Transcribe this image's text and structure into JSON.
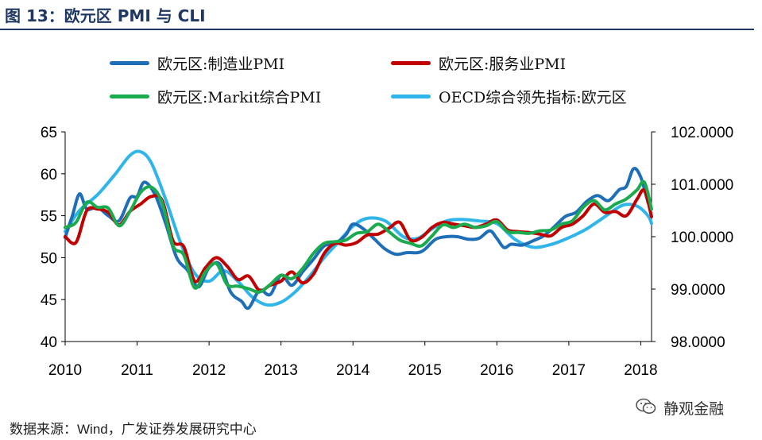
{
  "header": {
    "title": "图 13：欧元区 PMI 与 CLI"
  },
  "footer": {
    "source_prefix": "数据来源：",
    "source_value": "Wind，广发证券发展研究中心",
    "watermark": "静观金融"
  },
  "colors": {
    "manufacturing": "#1f6fb8",
    "services": "#c00000",
    "composite": "#1aab4e",
    "cli": "#2fb5ea",
    "axis": "#000000"
  },
  "chart_data": {
    "type": "line",
    "x_ticks": [
      "2010",
      "2011",
      "2012",
      "2013",
      "2014",
      "2015",
      "2016",
      "2017",
      "2018"
    ],
    "y_left": {
      "min": 40,
      "max": 65,
      "ticks": [
        "40",
        "45",
        "50",
        "55",
        "60",
        "65"
      ]
    },
    "y_right": {
      "min": 98.0,
      "max": 102.0,
      "ticks": [
        "98.0000",
        "99.0000",
        "100.0000",
        "101.0000",
        "102.0000"
      ]
    },
    "series": [
      {
        "name": "欧元区:制造业PMI",
        "axis": "left",
        "color_key": "manufacturing",
        "x": [
          2010.0,
          2010.1,
          2010.2,
          2010.3,
          2010.45,
          2010.6,
          2010.75,
          2010.9,
          2011.0,
          2011.1,
          2011.25,
          2011.4,
          2011.55,
          2011.7,
          2011.85,
          2012.0,
          2012.15,
          2012.3,
          2012.45,
          2012.55,
          2012.7,
          2012.85,
          2013.0,
          2013.15,
          2013.3,
          2013.45,
          2013.6,
          2013.75,
          2013.9,
          2014.0,
          2014.15,
          2014.3,
          2014.45,
          2014.6,
          2014.75,
          2014.9,
          2015.0,
          2015.15,
          2015.3,
          2015.45,
          2015.6,
          2015.75,
          2015.9,
          2016.0,
          2016.1,
          2016.2,
          2016.35,
          2016.5,
          2016.65,
          2016.8,
          2016.95,
          2017.1,
          2017.25,
          2017.4,
          2017.55,
          2017.7,
          2017.8,
          2017.9,
          2018.0,
          2018.1
        ],
        "values": [
          52.4,
          55.0,
          57.6,
          55.8,
          56.0,
          55.0,
          54.4,
          57.1,
          57.3,
          59.0,
          57.5,
          54.0,
          50.0,
          48.5,
          46.5,
          48.8,
          49.2,
          45.9,
          44.8,
          44.0,
          46.1,
          45.6,
          47.9,
          46.7,
          48.3,
          49.8,
          51.4,
          51.7,
          52.7,
          54.0,
          53.4,
          52.2,
          51.0,
          50.4,
          50.6,
          50.6,
          51.0,
          52.2,
          52.5,
          52.5,
          52.2,
          52.3,
          53.2,
          52.3,
          51.2,
          51.6,
          51.5,
          52.0,
          52.6,
          53.7,
          54.9,
          55.4,
          56.7,
          57.4,
          56.8,
          58.1,
          58.5,
          60.6,
          59.6,
          56.6
        ]
      },
      {
        "name": "欧元区:服务业PMI",
        "axis": "left",
        "color_key": "services",
        "x": [
          2010.0,
          2010.15,
          2010.3,
          2010.45,
          2010.6,
          2010.75,
          2010.9,
          2011.05,
          2011.2,
          2011.35,
          2011.5,
          2011.65,
          2011.8,
          2011.95,
          2012.1,
          2012.25,
          2012.4,
          2012.55,
          2012.7,
          2012.85,
          2013.0,
          2013.15,
          2013.3,
          2013.45,
          2013.6,
          2013.75,
          2013.9,
          2014.05,
          2014.2,
          2014.35,
          2014.5,
          2014.65,
          2014.8,
          2014.95,
          2015.1,
          2015.25,
          2015.4,
          2015.55,
          2015.7,
          2015.85,
          2016.0,
          2016.15,
          2016.3,
          2016.45,
          2016.6,
          2016.75,
          2016.9,
          2017.05,
          2017.2,
          2017.35,
          2017.5,
          2017.65,
          2017.8,
          2017.95,
          2018.05,
          2018.15
        ],
        "values": [
          52.5,
          51.8,
          55.6,
          55.8,
          55.4,
          53.9,
          55.5,
          56.4,
          57.3,
          56.8,
          52.0,
          51.3,
          47.2,
          48.8,
          50.0,
          49.0,
          47.4,
          47.8,
          46.1,
          46.7,
          47.2,
          48.3,
          47.0,
          48.0,
          50.5,
          51.7,
          51.5,
          51.8,
          52.7,
          52.8,
          53.5,
          54.2,
          52.1,
          52.4,
          53.6,
          54.2,
          54.0,
          53.8,
          53.6,
          54.0,
          54.5,
          53.3,
          53.1,
          53.0,
          52.8,
          52.6,
          53.6,
          54.0,
          55.0,
          56.4,
          55.4,
          55.5,
          55.0,
          57.0,
          58.0,
          54.9
        ]
      },
      {
        "name": "欧元区:Markit综合PMI",
        "axis": "left",
        "color_key": "composite",
        "x": [
          2010.0,
          2010.15,
          2010.3,
          2010.45,
          2010.6,
          2010.75,
          2010.9,
          2011.05,
          2011.2,
          2011.35,
          2011.5,
          2011.65,
          2011.8,
          2011.95,
          2012.1,
          2012.25,
          2012.4,
          2012.55,
          2012.7,
          2012.85,
          2013.0,
          2013.15,
          2013.3,
          2013.45,
          2013.6,
          2013.75,
          2013.9,
          2014.05,
          2014.2,
          2014.35,
          2014.5,
          2014.65,
          2014.8,
          2014.95,
          2015.1,
          2015.25,
          2015.4,
          2015.55,
          2015.7,
          2015.85,
          2016.0,
          2016.15,
          2016.3,
          2016.45,
          2016.6,
          2016.75,
          2016.9,
          2017.05,
          2017.2,
          2017.35,
          2017.5,
          2017.65,
          2017.8,
          2017.95,
          2018.05,
          2018.15
        ],
        "values": [
          53.6,
          54.2,
          56.6,
          56.0,
          55.9,
          53.8,
          55.5,
          57.8,
          58.4,
          56.5,
          51.4,
          50.3,
          46.4,
          48.3,
          49.3,
          46.8,
          46.6,
          46.3,
          45.9,
          46.8,
          47.9,
          47.5,
          48.7,
          50.5,
          51.7,
          51.9,
          52.1,
          52.9,
          53.1,
          54.0,
          53.1,
          52.1,
          51.7,
          51.4,
          52.6,
          53.9,
          53.6,
          54.0,
          53.6,
          53.8,
          54.3,
          53.1,
          53.0,
          52.9,
          53.2,
          53.3,
          54.0,
          54.4,
          56.0,
          56.8,
          55.7,
          56.4,
          57.0,
          58.1,
          59.0,
          55.8
        ]
      },
      {
        "name": "OECD综合领先指标:欧元区",
        "axis": "right",
        "color_key": "cli",
        "x": [
          2010.0,
          2010.2,
          2010.45,
          2010.7,
          2010.9,
          2011.05,
          2011.2,
          2011.4,
          2011.6,
          2011.8,
          2012.0,
          2012.2,
          2012.4,
          2012.6,
          2012.8,
          2013.0,
          2013.2,
          2013.4,
          2013.6,
          2013.8,
          2014.0,
          2014.2,
          2014.45,
          2014.7,
          2014.9,
          2015.1,
          2015.3,
          2015.5,
          2015.75,
          2016.0,
          2016.25,
          2016.5,
          2016.75,
          2017.0,
          2017.25,
          2017.5,
          2017.75,
          2017.95,
          2018.1,
          2018.15
        ],
        "values": [
          100.1,
          100.5,
          100.8,
          101.2,
          101.55,
          101.62,
          101.4,
          100.7,
          99.9,
          99.3,
          99.15,
          99.35,
          99.15,
          98.85,
          98.7,
          98.75,
          98.95,
          99.25,
          99.6,
          99.9,
          100.2,
          100.35,
          100.3,
          100.0,
          99.97,
          100.15,
          100.3,
          100.33,
          100.3,
          100.25,
          99.95,
          99.8,
          99.85,
          99.98,
          100.15,
          100.38,
          100.6,
          100.58,
          100.4,
          100.25
        ]
      }
    ]
  }
}
